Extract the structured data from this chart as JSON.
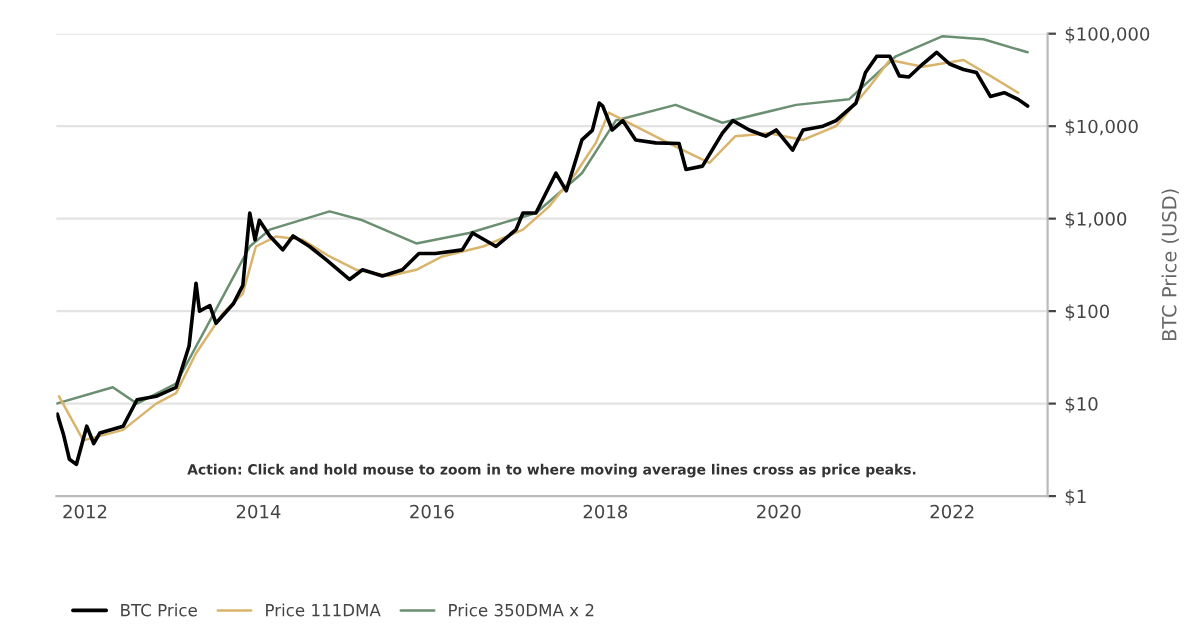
{
  "chart_data": {
    "type": "line",
    "ylabel": "BTC Price (USD)",
    "log": "y",
    "grid": "y",
    "legend": "bottom",
    "marker": "none",
    "line_style": "solid",
    "annotations": [
      "Action: Click and hold mouse to zoom in to where moving average lines cross as price peaks."
    ],
    "xlim": [
      2011.67,
      2023.1
    ],
    "xticks": [
      2012,
      2014,
      2016,
      2018,
      2020,
      2022
    ],
    "ylim": [
      1,
      100000
    ],
    "yticks": [
      {
        "value": 1,
        "label": "$1"
      },
      {
        "value": 10,
        "label": "$10"
      },
      {
        "value": 100,
        "label": "$100"
      },
      {
        "value": 1000,
        "label": "$1,000"
      },
      {
        "value": 10000,
        "label": "$10,000"
      },
      {
        "value": 100000,
        "label": "$100,000"
      }
    ],
    "series": [
      {
        "name": "BTC Price",
        "color": "#000000",
        "x": [
          2011.68,
          2011.75,
          2011.82,
          2011.9,
          2012.02,
          2012.1,
          2012.17,
          2012.44,
          2012.6,
          2012.82,
          2013.05,
          2013.2,
          2013.28,
          2013.32,
          2013.44,
          2013.51,
          2013.71,
          2013.82,
          2013.9,
          2013.96,
          2014.01,
          2014.13,
          2014.28,
          2014.4,
          2014.59,
          2014.78,
          2015.05,
          2015.2,
          2015.43,
          2015.66,
          2015.85,
          2016.04,
          2016.35,
          2016.47,
          2016.74,
          2016.97,
          2017.05,
          2017.2,
          2017.43,
          2017.55,
          2017.73,
          2017.85,
          2017.93,
          2017.97,
          2018.08,
          2018.2,
          2018.35,
          2018.58,
          2018.85,
          2018.93,
          2019.12,
          2019.35,
          2019.47,
          2019.66,
          2019.85,
          2019.97,
          2020.16,
          2020.28,
          2020.51,
          2020.66,
          2020.89,
          2021.0,
          2021.13,
          2021.28,
          2021.39,
          2021.5,
          2021.66,
          2021.82,
          2021.97,
          2022.13,
          2022.28,
          2022.44,
          2022.6,
          2022.76,
          2022.87
        ],
        "values": [
          7.7,
          4.7,
          2.5,
          2.2,
          5.7,
          3.7,
          4.8,
          5.7,
          11,
          12,
          15,
          42,
          200,
          100,
          115,
          74,
          120,
          190,
          1150,
          590,
          960,
          650,
          460,
          650,
          500,
          360,
          220,
          280,
          240,
          280,
          420,
          420,
          460,
          700,
          500,
          760,
          1150,
          1150,
          3100,
          2000,
          7100,
          9000,
          17800,
          16500,
          9100,
          11500,
          7100,
          6600,
          6500,
          3400,
          3700,
          8400,
          11500,
          9100,
          7800,
          9100,
          5500,
          9100,
          10000,
          11500,
          17800,
          38000,
          57000,
          57000,
          35000,
          34000,
          47000,
          63000,
          47000,
          41000,
          38000,
          21000,
          23000,
          19500,
          16500
        ]
      },
      {
        "name": "Price 111DMA",
        "color": "#d9b46c",
        "x": [
          2011.7,
          2011.98,
          2012.44,
          2012.82,
          2013.05,
          2013.28,
          2013.59,
          2013.82,
          2013.97,
          2014.2,
          2014.51,
          2014.82,
          2015.13,
          2015.51,
          2015.82,
          2016.12,
          2016.59,
          2017.05,
          2017.35,
          2017.66,
          2017.89,
          2018.04,
          2018.43,
          2018.81,
          2019.2,
          2019.5,
          2019.89,
          2020.28,
          2020.66,
          2021.05,
          2021.28,
          2021.66,
          2022.13,
          2022.44,
          2022.76
        ],
        "values": [
          12,
          4,
          5.2,
          10,
          13,
          35,
          95,
          155,
          500,
          640,
          590,
          390,
          280,
          240,
          280,
          390,
          500,
          760,
          1350,
          3100,
          6600,
          14000,
          9100,
          6000,
          4000,
          7800,
          8400,
          7100,
          10000,
          27000,
          52000,
          44000,
          52000,
          35000,
          23000
        ]
      },
      {
        "name": "Price 350DMA x 2",
        "color": "#6b8f71",
        "x": [
          2011.67,
          2012.32,
          2012.6,
          2013.05,
          2013.5,
          2013.9,
          2014.13,
          2014.82,
          2015.2,
          2015.82,
          2016.43,
          2017.2,
          2017.73,
          2018.12,
          2018.81,
          2019.35,
          2020.2,
          2020.81,
          2021.35,
          2021.89,
          2022.36,
          2022.87
        ],
        "values": [
          10,
          15,
          10,
          16.5,
          100,
          500,
          760,
          1200,
          960,
          540,
          700,
          1150,
          3100,
          11500,
          17000,
          10900,
          17000,
          19500,
          57000,
          94000,
          87000,
          63000
        ]
      }
    ]
  }
}
